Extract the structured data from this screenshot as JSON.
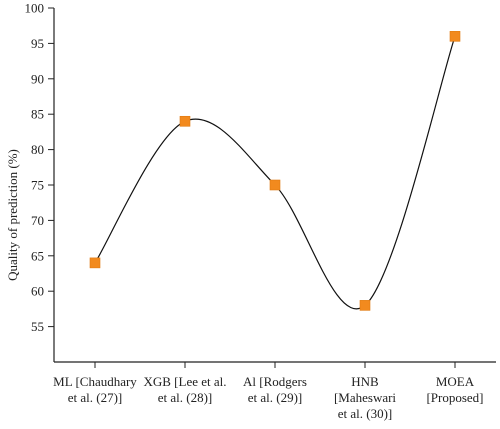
{
  "chart_data": {
    "type": "line",
    "title": "",
    "xlabel": "",
    "ylabel": "Quality of prediction (%)",
    "ylim": [
      50,
      100
    ],
    "y_ticks": [
      55,
      60,
      65,
      70,
      75,
      80,
      85,
      90,
      95,
      100
    ],
    "categories": [
      [
        "ML [Chaudhary",
        "et al. (27)]"
      ],
      [
        "XGB [Lee et al.",
        "et al. (28)]"
      ],
      [
        "Al [Rodgers",
        "et al. (29)]"
      ],
      [
        "HNB",
        "[Maheswari",
        "et al. (30)]"
      ],
      [
        "MOEA",
        "[Proposed]"
      ]
    ],
    "values": [
      64,
      84,
      75,
      58,
      96
    ],
    "smooth": true,
    "marker": "square",
    "marker_color": "#f28a1e",
    "line_color": "#111111",
    "grid": false
  }
}
